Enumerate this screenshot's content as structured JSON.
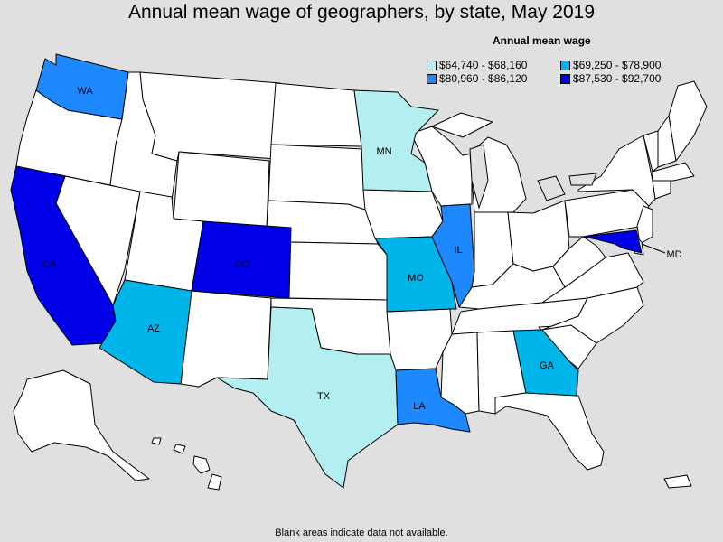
{
  "title": "Annual mean wage of geographers, by state, May 2019",
  "legend": {
    "title": "Annual mean wage",
    "bins": [
      {
        "label": "$64,740 - $68,160",
        "color": "#b3eef0"
      },
      {
        "label": "$69,250 - $78,900",
        "color": "#00b5ea"
      },
      {
        "label": "$80,960 - $86,120",
        "color": "#1e88ff"
      },
      {
        "label": "$87,530 - $92,700",
        "color": "#0000e8"
      }
    ]
  },
  "footnote": "Blank areas indicate data not available.",
  "colors": {
    "blank": "#ffffff",
    "background": "#e0e0e0",
    "lakes": "#e0e0e0"
  },
  "states": [
    {
      "abbr": "WA",
      "label": "WA",
      "bin": 2
    },
    {
      "abbr": "CA",
      "label": "CA",
      "bin": 3
    },
    {
      "abbr": "CO",
      "label": "CO",
      "bin": 3
    },
    {
      "abbr": "MD",
      "label": "MD",
      "bin": 3
    },
    {
      "abbr": "AZ",
      "label": "AZ",
      "bin": 1
    },
    {
      "abbr": "MO",
      "label": "MO",
      "bin": 1
    },
    {
      "abbr": "GA",
      "label": "GA",
      "bin": 1
    },
    {
      "abbr": "MN",
      "label": "MN",
      "bin": 0
    },
    {
      "abbr": "TX",
      "label": "TX",
      "bin": 0
    },
    {
      "abbr": "IL",
      "label": "IL",
      "bin": 2
    },
    {
      "abbr": "LA",
      "label": "LA",
      "bin": 2
    }
  ]
}
